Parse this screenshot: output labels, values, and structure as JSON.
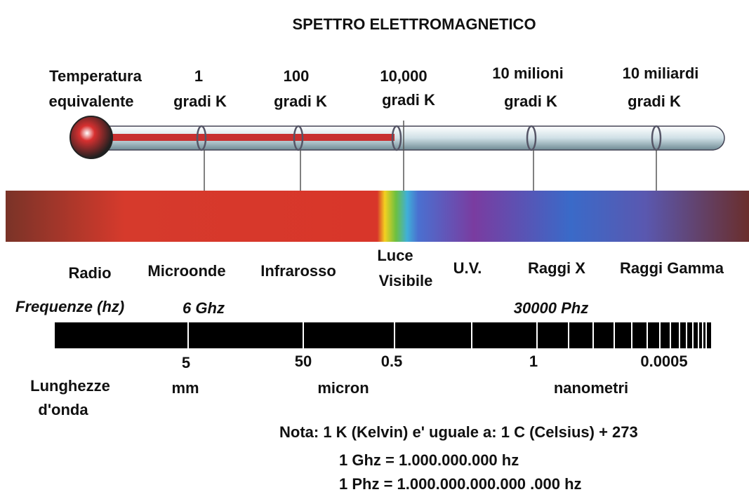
{
  "title": "SPETTRO  ELETTROMAGNETICO",
  "temperature": {
    "label": [
      "Temperatura",
      "equivalente"
    ],
    "marks": [
      [
        "1",
        "gradi  K"
      ],
      [
        "100",
        "gradi  K"
      ],
      [
        "10,000",
        "gradi  K"
      ],
      [
        "10 milioni",
        "gradi   K"
      ],
      [
        "10 miliardi",
        "gradi   K"
      ]
    ]
  },
  "bands": [
    [
      "Radio"
    ],
    [
      "Microonde"
    ],
    [
      "Infrarosso"
    ],
    [
      "Luce",
      "Visibile"
    ],
    [
      "U.V."
    ],
    [
      "Raggi X"
    ],
    [
      "Raggi Gamma"
    ]
  ],
  "frequency": {
    "label": "Frequenze (hz)",
    "marks": [
      "6 Ghz",
      "30000 Phz"
    ]
  },
  "wavelength": {
    "label": [
      "Lunghezze",
      "d'onda"
    ],
    "values": [
      "5",
      "50",
      "0.5",
      "1",
      "0.0005"
    ],
    "units": [
      "mm",
      "micron",
      "nanometri"
    ]
  },
  "notes": [
    "Nota:  1 K (Kelvin) e' uguale a: 1 C (Celsius) + 273",
    "1 Ghz = 1.000.000.000 hz",
    "1 Phz = 1.000.000.000.000 .000 hz"
  ]
}
